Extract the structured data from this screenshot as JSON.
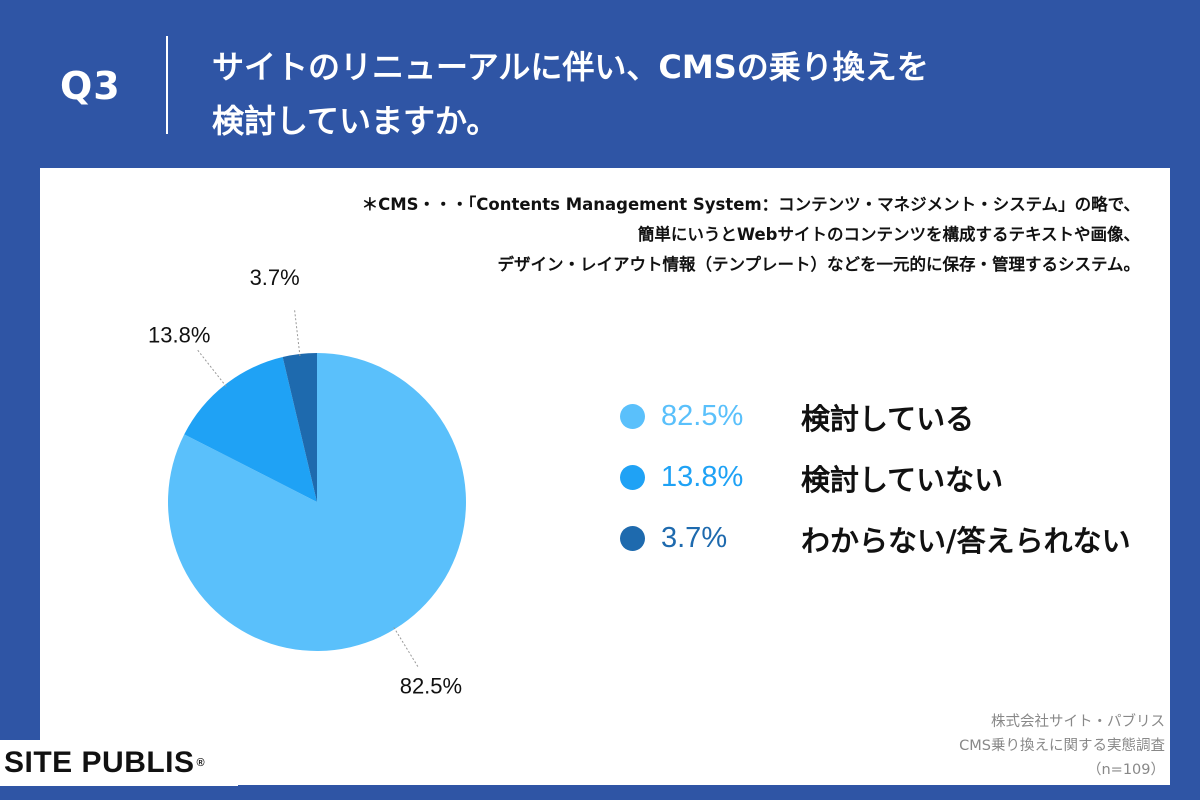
{
  "header": {
    "question_number": "Q3",
    "question_line1": "サイトのリニューアルに伴い、CMSの乗り換えを",
    "question_line2": "検討していますか。"
  },
  "note": {
    "line1": "＊CMS・・・「Contents Management System：コンテンツ・マネジメント・システム」の略で、",
    "line2": "簡単にいうとWebサイトのコンテンツを構成するテキストや画像、",
    "line3": "デザイン・レイアウト情報（テンプレート）などを一元的に保存・管理するシステム。"
  },
  "chart_data": {
    "type": "pie",
    "slices": [
      {
        "label": "検討している",
        "value": 82.5,
        "display": "82.5%",
        "color": "#5ac0fb"
      },
      {
        "label": "検討していない",
        "value": 13.8,
        "display": "13.8%",
        "color": "#1fa2f5"
      },
      {
        "label": "わからない/答えられない",
        "value": 3.7,
        "display": "3.7%",
        "color": "#1e6aae"
      }
    ],
    "start": "12 o'clock",
    "direction": "clockwise"
  },
  "legend_colors": {
    "pct_1": "#5ac0fb",
    "pct_2": "#1fa2f5",
    "pct_3": "#1e6aae"
  },
  "brand": {
    "name": "SITE PUBLIS",
    "mark": "®"
  },
  "source": {
    "line1": "株式会社サイト・パブリス",
    "line2": "CMS乗り換えに関する実態調査",
    "line3": "（n=109）"
  },
  "colors": {
    "background": "#2f55a5",
    "card": "#ffffff"
  }
}
